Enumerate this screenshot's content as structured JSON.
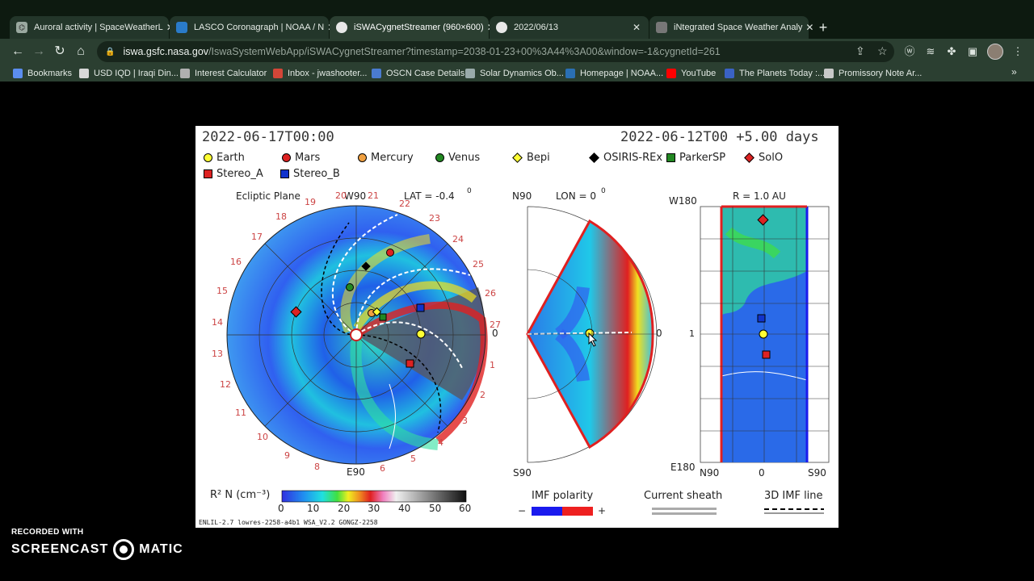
{
  "tabs": [
    {
      "title": "Auroral activity | SpaceWeatherL",
      "active": false
    },
    {
      "title": "LASCO Coronagraph | NOAA / N",
      "active": false
    },
    {
      "title": "iSWACygnetStreamer (960×600)",
      "active": true
    },
    {
      "title": "2022/06/13",
      "active": false
    },
    {
      "title": "iNtegrated Space Weather Analy",
      "active": false
    }
  ],
  "toolbar": {
    "url_host": "iswa.gsfc.nasa.gov",
    "url_path": "/IswaSystemWebApp/iSWACygnetStreamer?timestamp=2038-01-23+00%3A44%3A00&window=-1&cygnetId=261"
  },
  "bookmarks": [
    {
      "label": "Bookmarks",
      "color": "#5b8def"
    },
    {
      "label": "USD IQD | Iraqi Din...",
      "color": "#d8d8d8"
    },
    {
      "label": "Interest Calculator",
      "color": "#b0b0b0"
    },
    {
      "label": "Inbox - jwashooter...",
      "color": "#d44638"
    },
    {
      "label": "OSCN Case Details",
      "color": "#4a7bd0"
    },
    {
      "label": "Solar Dynamics Ob...",
      "color": "#9aa"
    },
    {
      "label": "Homepage | NOAA...",
      "color": "#2a6fb3"
    },
    {
      "label": "YouTube",
      "color": "#ff0000"
    },
    {
      "label": "The Planets Today :...",
      "color": "#3a62c4"
    },
    {
      "label": "Promissory Note Ar...",
      "color": "#c8c8c8"
    }
  ],
  "plot": {
    "date_left": "2022-06-17T00:00",
    "date_right": "2022-06-12T00 +5.00 days",
    "legend": [
      {
        "label": "Earth",
        "shape": "dot",
        "color": "#ffff33"
      },
      {
        "label": "Mars",
        "shape": "dot",
        "color": "#dd2222"
      },
      {
        "label": "Mercury",
        "shape": "dot",
        "color": "#f0a040"
      },
      {
        "label": "Venus",
        "shape": "dot",
        "color": "#228822"
      },
      {
        "label": "Bepi",
        "shape": "diamond",
        "color": "#ffff33"
      },
      {
        "label": "OSIRIS-REx",
        "shape": "diamond",
        "color": "#000000"
      },
      {
        "label": "ParkerSP",
        "shape": "rect",
        "color": "#228822"
      },
      {
        "label": "SolO",
        "shape": "diamond",
        "color": "#dd2222"
      },
      {
        "label": "Stereo_A",
        "shape": "rect",
        "color": "#dd2222"
      },
      {
        "label": "Stereo_B",
        "shape": "rect",
        "color": "#1133cc"
      }
    ],
    "panel1": {
      "title": "Ecliptic Plane",
      "top": "W90",
      "lat": "LAT = -0.4",
      "deg": "0",
      "bottom": "E90",
      "right": "0",
      "ticks": [
        "19",
        "20",
        "21",
        "22",
        "23",
        "24",
        "25",
        "26",
        "27",
        "1",
        "2",
        "3",
        "4",
        "5",
        "6",
        "7",
        "8",
        "9",
        "10",
        "11",
        "12",
        "13",
        "14",
        "15",
        "16",
        "17",
        "18"
      ]
    },
    "panel2": {
      "top": "N90",
      "lon": "LON = 0",
      "deg": "0",
      "bottom": "S90",
      "right": "0"
    },
    "panel3": {
      "title": "R = 1.0 AU",
      "w180": "W180",
      "e180": "E180",
      "one": "1",
      "n90": "N90",
      "zero": "0",
      "s90": "S90"
    },
    "colorbar": {
      "label": "R² N (cm⁻³)",
      "ticks": [
        "0",
        "10",
        "20",
        "30",
        "40",
        "50",
        "60"
      ]
    },
    "imf": {
      "label": "IMF polarity",
      "minus": "−",
      "plus": "+"
    },
    "sheath": "Current sheath",
    "imf3d": "3D IMF line",
    "footer": "ENLIL-2.7 lowres-2258-a4b1 WSA_V2.2 GONGZ-2258"
  },
  "watermark": {
    "line1": "RECORDED WITH",
    "left": "SCREENCAST",
    "right": "MATIC"
  },
  "colors": {
    "tabbar": "#0d1a10",
    "toolbar": "#2b3f31"
  }
}
